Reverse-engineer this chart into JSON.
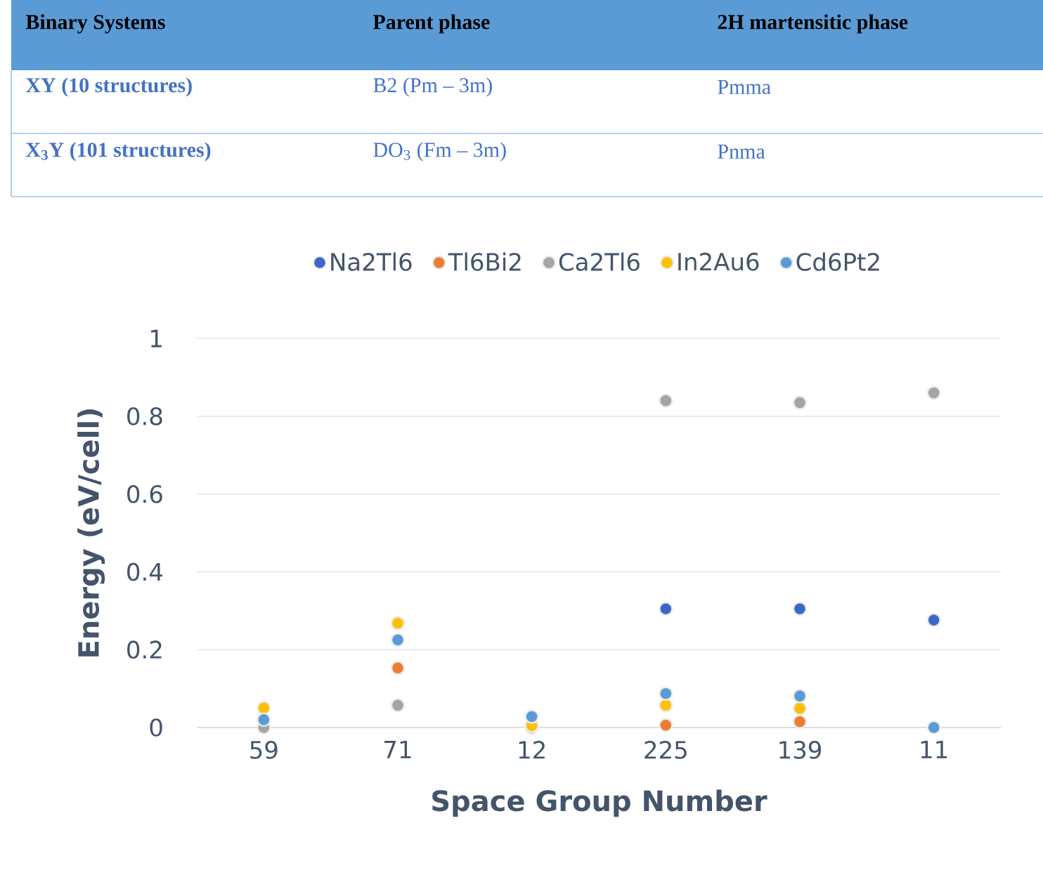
{
  "chart_data": [
    {
      "type": "other",
      "annotations": [
        "**Binary Systems**",
        "**Parent phase**",
        "**2H martensitic phase**",
        "**XY (10 structures)**",
        "B2 (Pm – 3m)",
        "Pmma",
        "**X$_{3}$Y (101 structures)**",
        "DO$_{3}$ (Fm – 3m)",
        "Pnma"
      ]
    },
    {
      "type": "scatter",
      "xlabel": "Space Group Number",
      "ylabel": "Energy (eV/cell)",
      "categories": [
        "59",
        "71",
        "12",
        "225",
        "139",
        "11"
      ],
      "ylim": [
        0,
        1
      ],
      "yticks": [
        0,
        0.2,
        0.4,
        0.6,
        0.8,
        1
      ],
      "grid": "y",
      "legend": "top",
      "marker": "circle",
      "series": [
        {
          "name": "Na2Tl6",
          "color": "#3a67c8",
          "values": [
            null,
            null,
            null,
            0.305,
            0.305,
            0.276
          ]
        },
        {
          "name": "Tl6Bi2",
          "color": "#ed7d31",
          "values": [
            null,
            0.153,
            null,
            0.006,
            0.015,
            null
          ]
        },
        {
          "name": "Ca2Tl6",
          "color": "#a5a5a5",
          "values": [
            0,
            0.057,
            0,
            0.84,
            0.835,
            0.86
          ]
        },
        {
          "name": "In2Au6",
          "color": "#ffc000",
          "values": [
            0.05,
            0.268,
            0.005,
            0.057,
            0.049,
            null
          ]
        },
        {
          "name": "Cd6Pt2",
          "color": "#5b9bd5",
          "values": [
            0.02,
            0.225,
            0.028,
            0.087,
            0.081,
            0
          ]
        }
      ]
    }
  ]
}
